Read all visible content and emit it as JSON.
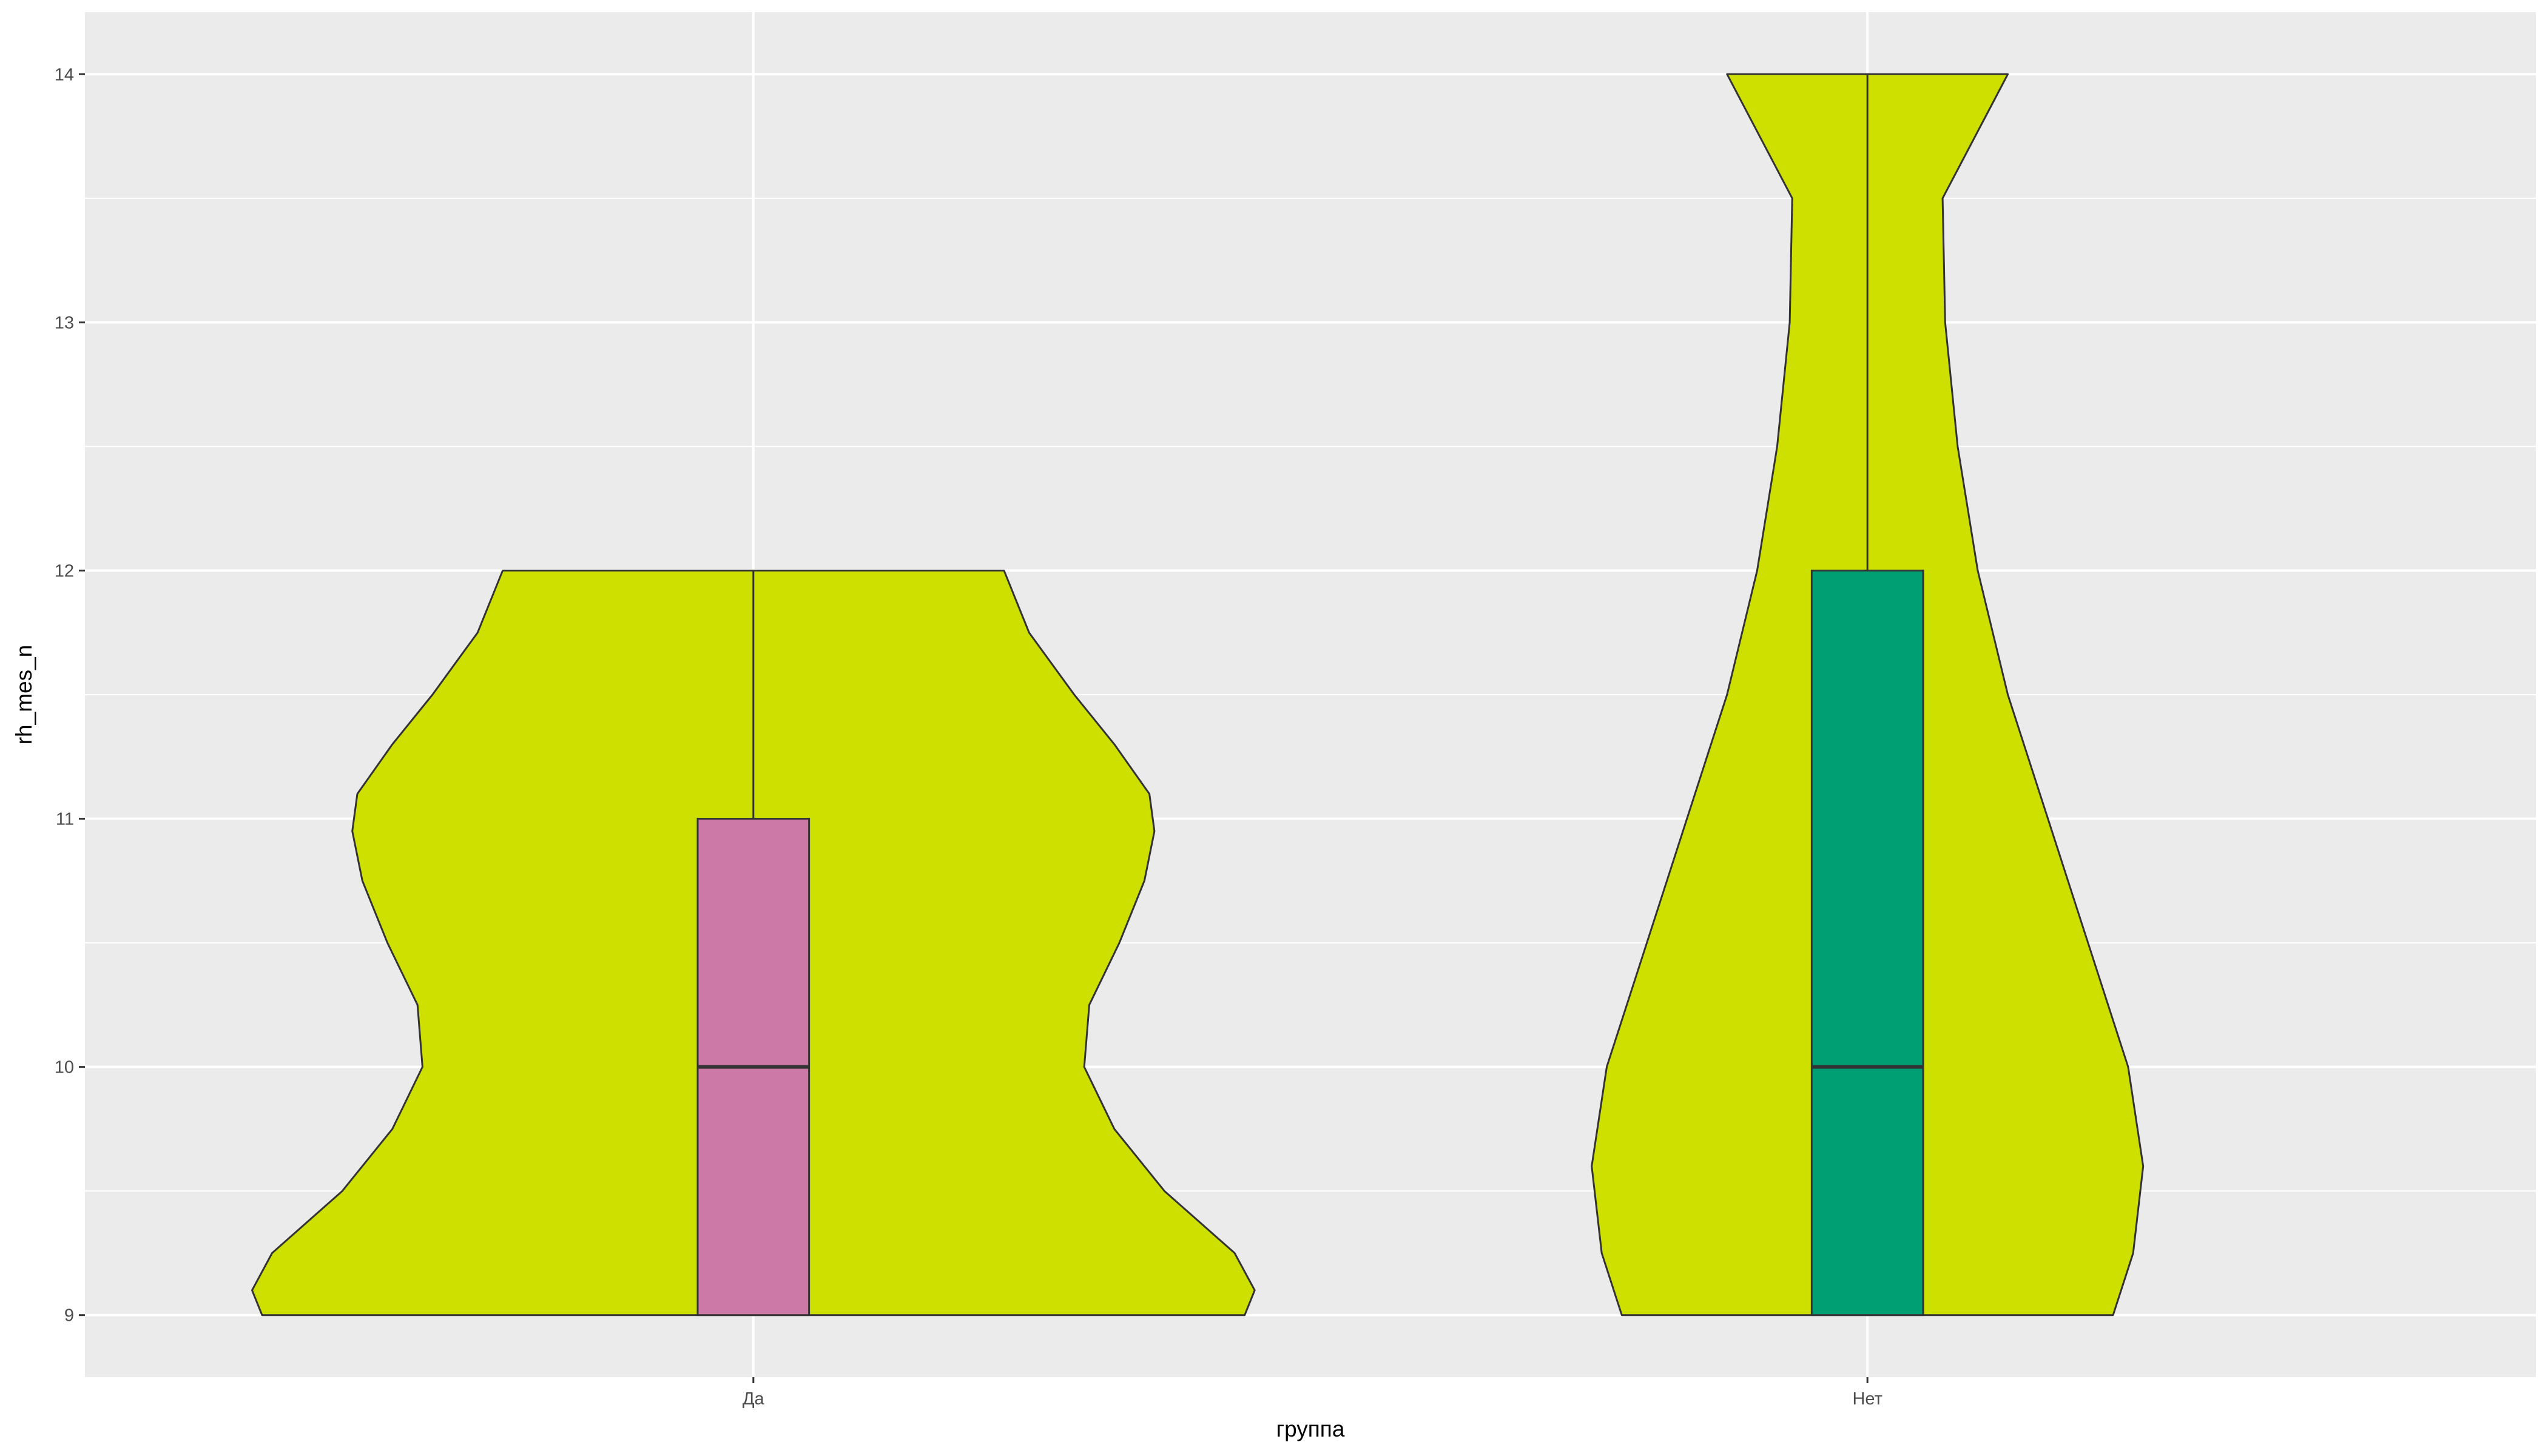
{
  "chart_data": {
    "type": "violin",
    "title": "",
    "xlabel": "группа",
    "ylabel": "rh_mes_n",
    "categories": [
      "Да",
      "Нет"
    ],
    "ylim": [
      8.75,
      14.25
    ],
    "yticks": [
      9,
      10,
      11,
      12,
      13,
      14
    ],
    "grid": true,
    "legend": "none",
    "colors": {
      "panel": "#EBEBEB",
      "grid": "#FFFFFF",
      "violin_fill": "#CEE000",
      "outline": "#333333",
      "box_fill": [
        "#CC79A7",
        "#009E73"
      ]
    },
    "series": [
      {
        "category": "Да",
        "box": {
          "min": 9,
          "q1": 9,
          "median": 10,
          "q3": 11,
          "max": 12
        },
        "density": [
          [
            9.0,
            0.98
          ],
          [
            9.1,
            1.0
          ],
          [
            9.25,
            0.96
          ],
          [
            9.5,
            0.82
          ],
          [
            9.75,
            0.72
          ],
          [
            10.0,
            0.66
          ],
          [
            10.25,
            0.67
          ],
          [
            10.5,
            0.73
          ],
          [
            10.75,
            0.78
          ],
          [
            10.95,
            0.8
          ],
          [
            11.1,
            0.79
          ],
          [
            11.3,
            0.72
          ],
          [
            11.5,
            0.64
          ],
          [
            11.75,
            0.55
          ],
          [
            12.0,
            0.5
          ]
        ]
      },
      {
        "category": "Нет",
        "box": {
          "min": 9,
          "q1": 9,
          "median": 10,
          "q3": 12,
          "max": 14
        },
        "density": [
          [
            9.0,
            0.49
          ],
          [
            9.25,
            0.53
          ],
          [
            9.6,
            0.55
          ],
          [
            10.0,
            0.52
          ],
          [
            10.5,
            0.44
          ],
          [
            11.0,
            0.36
          ],
          [
            11.5,
            0.28
          ],
          [
            12.0,
            0.22
          ],
          [
            12.5,
            0.18
          ],
          [
            13.0,
            0.155
          ],
          [
            13.5,
            0.15
          ],
          [
            14.0,
            0.28
          ]
        ]
      }
    ]
  }
}
